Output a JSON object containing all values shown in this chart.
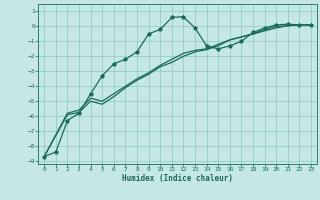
{
  "xlabel": "Humidex (Indice chaleur)",
  "bg_color": "#c5e8e5",
  "grid_color": "#8ec8c0",
  "line_color": "#1a6b5a",
  "xlim": [
    -0.5,
    23.5
  ],
  "ylim": [
    -9.2,
    1.5
  ],
  "yticks": [
    1,
    0,
    -1,
    -2,
    -3,
    -4,
    -5,
    -6,
    -7,
    -8,
    -9
  ],
  "xticks": [
    0,
    1,
    2,
    3,
    4,
    5,
    6,
    7,
    8,
    9,
    10,
    11,
    12,
    13,
    14,
    15,
    16,
    17,
    18,
    19,
    20,
    21,
    22,
    23
  ],
  "line1_x": [
    0,
    1,
    2,
    3,
    4,
    5,
    6,
    7,
    8,
    9,
    10,
    11,
    12,
    13,
    14,
    15,
    16,
    17,
    18,
    19,
    20,
    21,
    22,
    23
  ],
  "line1_y": [
    -8.7,
    -8.4,
    -6.3,
    -5.8,
    -4.5,
    -3.3,
    -2.5,
    -2.2,
    -1.7,
    -0.5,
    -0.2,
    0.6,
    0.65,
    -0.1,
    -1.3,
    -1.5,
    -1.3,
    -1.0,
    -0.4,
    -0.1,
    0.1,
    0.15,
    0.1,
    0.1
  ],
  "line2_x": [
    0,
    2,
    3,
    4,
    5,
    6,
    7,
    8,
    9,
    10,
    11,
    12,
    13,
    14,
    15,
    16,
    17,
    18,
    19,
    20,
    21,
    22,
    23
  ],
  "line2_y": [
    -8.7,
    -5.8,
    -5.6,
    -4.8,
    -5.0,
    -4.5,
    -4.0,
    -3.5,
    -3.1,
    -2.6,
    -2.2,
    -1.8,
    -1.6,
    -1.5,
    -1.2,
    -0.9,
    -0.7,
    -0.5,
    -0.3,
    -0.1,
    0.05,
    0.1,
    0.1
  ],
  "line3_x": [
    0,
    2,
    3,
    4,
    5,
    6,
    7,
    8,
    9,
    10,
    11,
    12,
    13,
    14,
    15,
    16,
    17,
    18,
    19,
    20,
    21,
    22,
    23
  ],
  "line3_y": [
    -8.7,
    -5.9,
    -5.75,
    -5.0,
    -5.2,
    -4.7,
    -4.1,
    -3.6,
    -3.2,
    -2.7,
    -2.4,
    -2.0,
    -1.7,
    -1.55,
    -1.3,
    -0.9,
    -0.7,
    -0.5,
    -0.2,
    0.0,
    0.05,
    0.1,
    0.1
  ]
}
